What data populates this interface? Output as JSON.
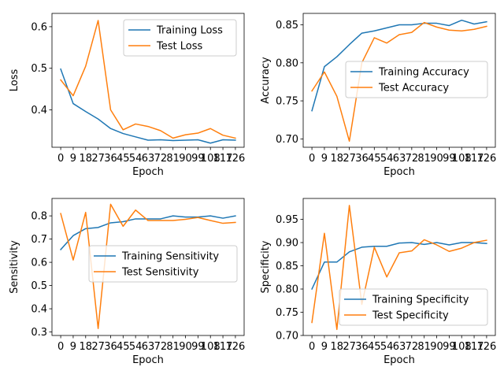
{
  "colors": {
    "training": "#1f77b4",
    "test": "#ff7f0e"
  },
  "chart_data": [
    {
      "type": "line",
      "xlabel": "Epoch",
      "ylabel": "Loss",
      "x": [
        0,
        9,
        18,
        27,
        36,
        45,
        54,
        63,
        72,
        81,
        90,
        99,
        108,
        117,
        126
      ],
      "xtick_labels": [
        "0",
        "9",
        "18",
        "27",
        "36",
        "45",
        "54",
        "63",
        "72",
        "81",
        "90",
        "99",
        "108",
        "117",
        "126"
      ],
      "ylim": [
        0.31,
        0.632
      ],
      "yticks": [
        0.4,
        0.5,
        0.6
      ],
      "ytick_labels": [
        "0.4",
        "0.5",
        "0.6"
      ],
      "legend": "top-right",
      "series": [
        {
          "name": "Training Loss",
          "color_key": "training",
          "values": [
            0.498,
            0.415,
            0.396,
            0.378,
            0.355,
            0.343,
            0.335,
            0.327,
            0.328,
            0.326,
            0.327,
            0.328,
            0.32,
            0.328,
            0.327
          ]
        },
        {
          "name": "Test Loss",
          "color_key": "test",
          "values": [
            0.472,
            0.434,
            0.505,
            0.615,
            0.4,
            0.352,
            0.366,
            0.36,
            0.35,
            0.332,
            0.34,
            0.344,
            0.355,
            0.339,
            0.332
          ]
        }
      ]
    },
    {
      "type": "line",
      "xlabel": "Epoch",
      "ylabel": "Accuracy",
      "x": [
        0,
        9,
        18,
        27,
        36,
        45,
        54,
        63,
        72,
        81,
        90,
        99,
        108,
        117,
        126
      ],
      "xtick_labels": [
        "0",
        "9",
        "18",
        "27",
        "36",
        "45",
        "54",
        "63",
        "72",
        "81",
        "90",
        "99",
        "108",
        "117",
        "126"
      ],
      "ylim": [
        0.689,
        0.865
      ],
      "yticks": [
        0.7,
        0.75,
        0.8,
        0.85
      ],
      "ytick_labels": [
        "0.70",
        "0.75",
        "0.80",
        "0.85"
      ],
      "legend": "center-right",
      "series": [
        {
          "name": "Training Accuracy",
          "color_key": "training",
          "values": [
            0.737,
            0.795,
            0.808,
            0.824,
            0.839,
            0.842,
            0.846,
            0.85,
            0.85,
            0.852,
            0.852,
            0.849,
            0.856,
            0.851,
            0.854
          ]
        },
        {
          "name": "Test Accuracy",
          "color_key": "test",
          "values": [
            0.763,
            0.788,
            0.756,
            0.697,
            0.8,
            0.833,
            0.826,
            0.837,
            0.84,
            0.853,
            0.847,
            0.843,
            0.842,
            0.844,
            0.848
          ]
        }
      ]
    },
    {
      "type": "line",
      "xlabel": "Epoch",
      "ylabel": "Sensitivity",
      "x": [
        0,
        9,
        18,
        27,
        36,
        45,
        54,
        63,
        72,
        81,
        90,
        99,
        108,
        117,
        126
      ],
      "xtick_labels": [
        "0",
        "9",
        "18",
        "27",
        "36",
        "45",
        "54",
        "63",
        "72",
        "81",
        "90",
        "99",
        "108",
        "117",
        "126"
      ],
      "ylim": [
        0.285,
        0.875
      ],
      "yticks": [
        0.3,
        0.4,
        0.5,
        0.6,
        0.7,
        0.8
      ],
      "ytick_labels": [
        "0.3",
        "0.4",
        "0.5",
        "0.6",
        "0.7",
        "0.8"
      ],
      "legend": "center-right",
      "series": [
        {
          "name": "Training Sensitivity",
          "color_key": "training",
          "values": [
            0.655,
            0.715,
            0.745,
            0.75,
            0.77,
            0.775,
            0.787,
            0.787,
            0.787,
            0.8,
            0.795,
            0.795,
            0.8,
            0.79,
            0.8
          ]
        },
        {
          "name": "Test Sensitivity",
          "color_key": "test",
          "values": [
            0.81,
            0.61,
            0.815,
            0.315,
            0.85,
            0.755,
            0.825,
            0.78,
            0.78,
            0.78,
            0.785,
            0.793,
            0.78,
            0.768,
            0.772
          ]
        }
      ]
    },
    {
      "type": "line",
      "xlabel": "Epoch",
      "ylabel": "Specificity",
      "x": [
        0,
        9,
        18,
        27,
        36,
        45,
        54,
        63,
        72,
        81,
        90,
        99,
        108,
        117,
        126
      ],
      "xtick_labels": [
        "0",
        "9",
        "18",
        "27",
        "36",
        "45",
        "54",
        "63",
        "72",
        "81",
        "90",
        "99",
        "108",
        "117",
        "126"
      ],
      "ylim": [
        0.7,
        0.995
      ],
      "yticks": [
        0.7,
        0.75,
        0.8,
        0.85,
        0.9,
        0.95
      ],
      "ytick_labels": [
        "0.70",
        "0.75",
        "0.80",
        "0.85",
        "0.90",
        "0.95"
      ],
      "legend": "bottom-right",
      "series": [
        {
          "name": "Training Specificity",
          "color_key": "training",
          "values": [
            0.8,
            0.858,
            0.858,
            0.88,
            0.89,
            0.892,
            0.892,
            0.899,
            0.9,
            0.896,
            0.9,
            0.895,
            0.9,
            0.9,
            0.898
          ]
        },
        {
          "name": "Test Specificity",
          "color_key": "test",
          "values": [
            0.728,
            0.92,
            0.713,
            0.98,
            0.767,
            0.89,
            0.826,
            0.878,
            0.882,
            0.906,
            0.895,
            0.881,
            0.888,
            0.9,
            0.905
          ]
        }
      ]
    }
  ]
}
